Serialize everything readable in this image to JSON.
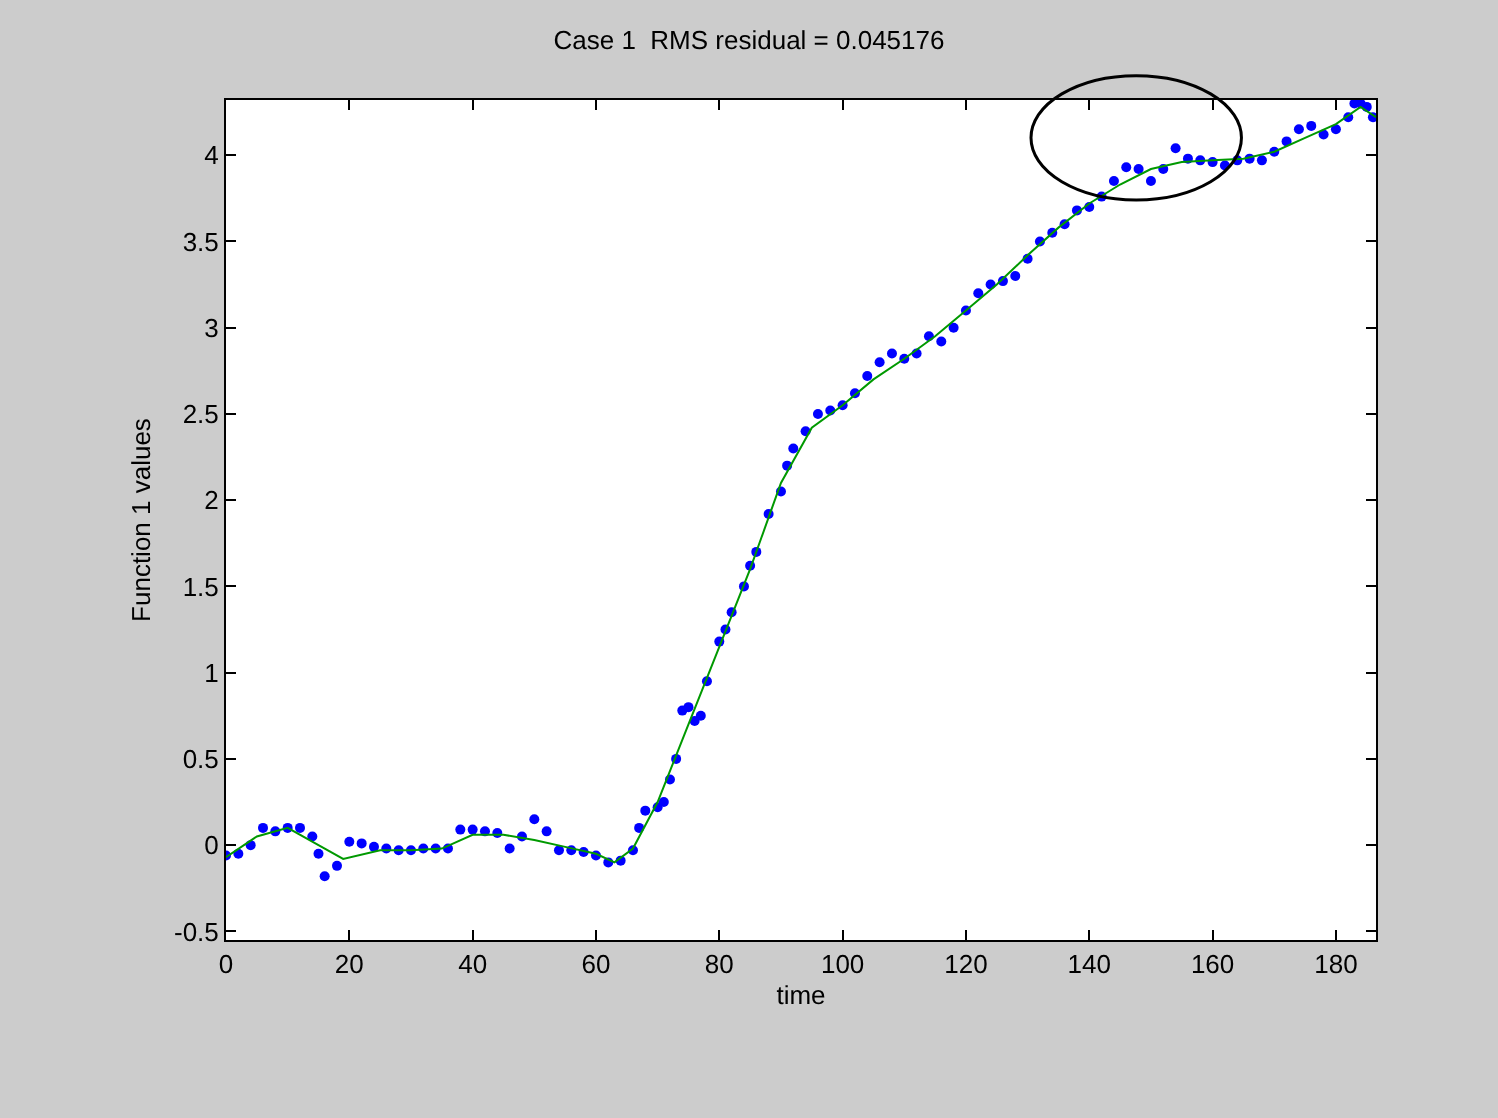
{
  "chart_data": {
    "type": "scatter",
    "title": "Case 1  RMS residual = 0.045176",
    "xlabel": "time",
    "ylabel": "Function 1 values",
    "xlim": [
      0,
      186.5
    ],
    "ylim": [
      -0.55,
      4.32
    ],
    "xticks": [
      0,
      20,
      40,
      60,
      80,
      100,
      120,
      140,
      160,
      180
    ],
    "yticks": [
      -0.5,
      0,
      0.5,
      1,
      1.5,
      2,
      2.5,
      3,
      3.5,
      4
    ],
    "series": [
      {
        "marker": "circle",
        "color": "#0000ff",
        "x": [
          0,
          2,
          4,
          6,
          8,
          10,
          12,
          14,
          15,
          16,
          18,
          20,
          22,
          24,
          26,
          28,
          30,
          32,
          34,
          36,
          38,
          40,
          42,
          44,
          46,
          48,
          50,
          52,
          54,
          56,
          58,
          60,
          62,
          64,
          66,
          67,
          68,
          70,
          71,
          72,
          73,
          74,
          75,
          76,
          77,
          78,
          80,
          81,
          82,
          84,
          85,
          86,
          88,
          90,
          91,
          92,
          94,
          96,
          98,
          100,
          102,
          104,
          106,
          108,
          110,
          112,
          114,
          116,
          118,
          120,
          122,
          124,
          126,
          128,
          130,
          132,
          134,
          136,
          138,
          140,
          142,
          144,
          146,
          148,
          150,
          152,
          154,
          156,
          158,
          160,
          162,
          164,
          166,
          168,
          170,
          172,
          174,
          176,
          178,
          180,
          182,
          183,
          184,
          185,
          186
        ],
        "values": [
          -0.06,
          -0.05,
          0.0,
          0.1,
          0.08,
          0.1,
          0.1,
          0.05,
          -0.05,
          -0.18,
          -0.12,
          0.02,
          0.01,
          -0.01,
          -0.02,
          -0.03,
          -0.03,
          -0.02,
          -0.02,
          -0.02,
          0.09,
          0.09,
          0.08,
          0.07,
          -0.02,
          0.05,
          0.15,
          0.08,
          -0.03,
          -0.03,
          -0.04,
          -0.06,
          -0.1,
          -0.09,
          -0.03,
          0.1,
          0.2,
          0.22,
          0.25,
          0.38,
          0.5,
          0.78,
          0.8,
          0.72,
          0.75,
          0.95,
          1.18,
          1.25,
          1.35,
          1.5,
          1.62,
          1.7,
          1.92,
          2.05,
          2.2,
          2.3,
          2.4,
          2.5,
          2.52,
          2.55,
          2.62,
          2.72,
          2.8,
          2.85,
          2.82,
          2.85,
          2.95,
          2.92,
          3.0,
          3.1,
          3.2,
          3.25,
          3.27,
          3.3,
          3.4,
          3.5,
          3.55,
          3.6,
          3.68,
          3.7,
          3.76,
          3.85,
          3.93,
          3.92,
          3.85,
          3.92,
          4.04,
          3.98,
          3.97,
          3.96,
          3.94,
          3.97,
          3.98,
          3.97,
          4.02,
          4.08,
          4.15,
          4.17,
          4.12,
          4.15,
          4.22,
          4.3,
          4.3,
          4.28,
          4.22
        ]
      },
      {
        "type": "line",
        "marker": "none",
        "line_style": "solid",
        "color": "#009900",
        "x": [
          0,
          5,
          10,
          15,
          19,
          25,
          30,
          35,
          40,
          45,
          50,
          55,
          60,
          63,
          66,
          70,
          75,
          80,
          85,
          90,
          95,
          100,
          105,
          110,
          115,
          120,
          125,
          130,
          135,
          140,
          145,
          150,
          155,
          160,
          165,
          170,
          175,
          180,
          184,
          186.5
        ],
        "values": [
          -0.07,
          0.05,
          0.1,
          0.0,
          -0.08,
          -0.03,
          -0.03,
          -0.02,
          0.06,
          0.06,
          0.03,
          -0.01,
          -0.05,
          -0.1,
          -0.02,
          0.25,
          0.7,
          1.15,
          1.6,
          2.1,
          2.42,
          2.55,
          2.7,
          2.82,
          2.95,
          3.1,
          3.25,
          3.42,
          3.58,
          3.72,
          3.83,
          3.92,
          3.96,
          3.97,
          3.98,
          4.02,
          4.1,
          4.18,
          4.28,
          4.22
        ]
      }
    ]
  }
}
